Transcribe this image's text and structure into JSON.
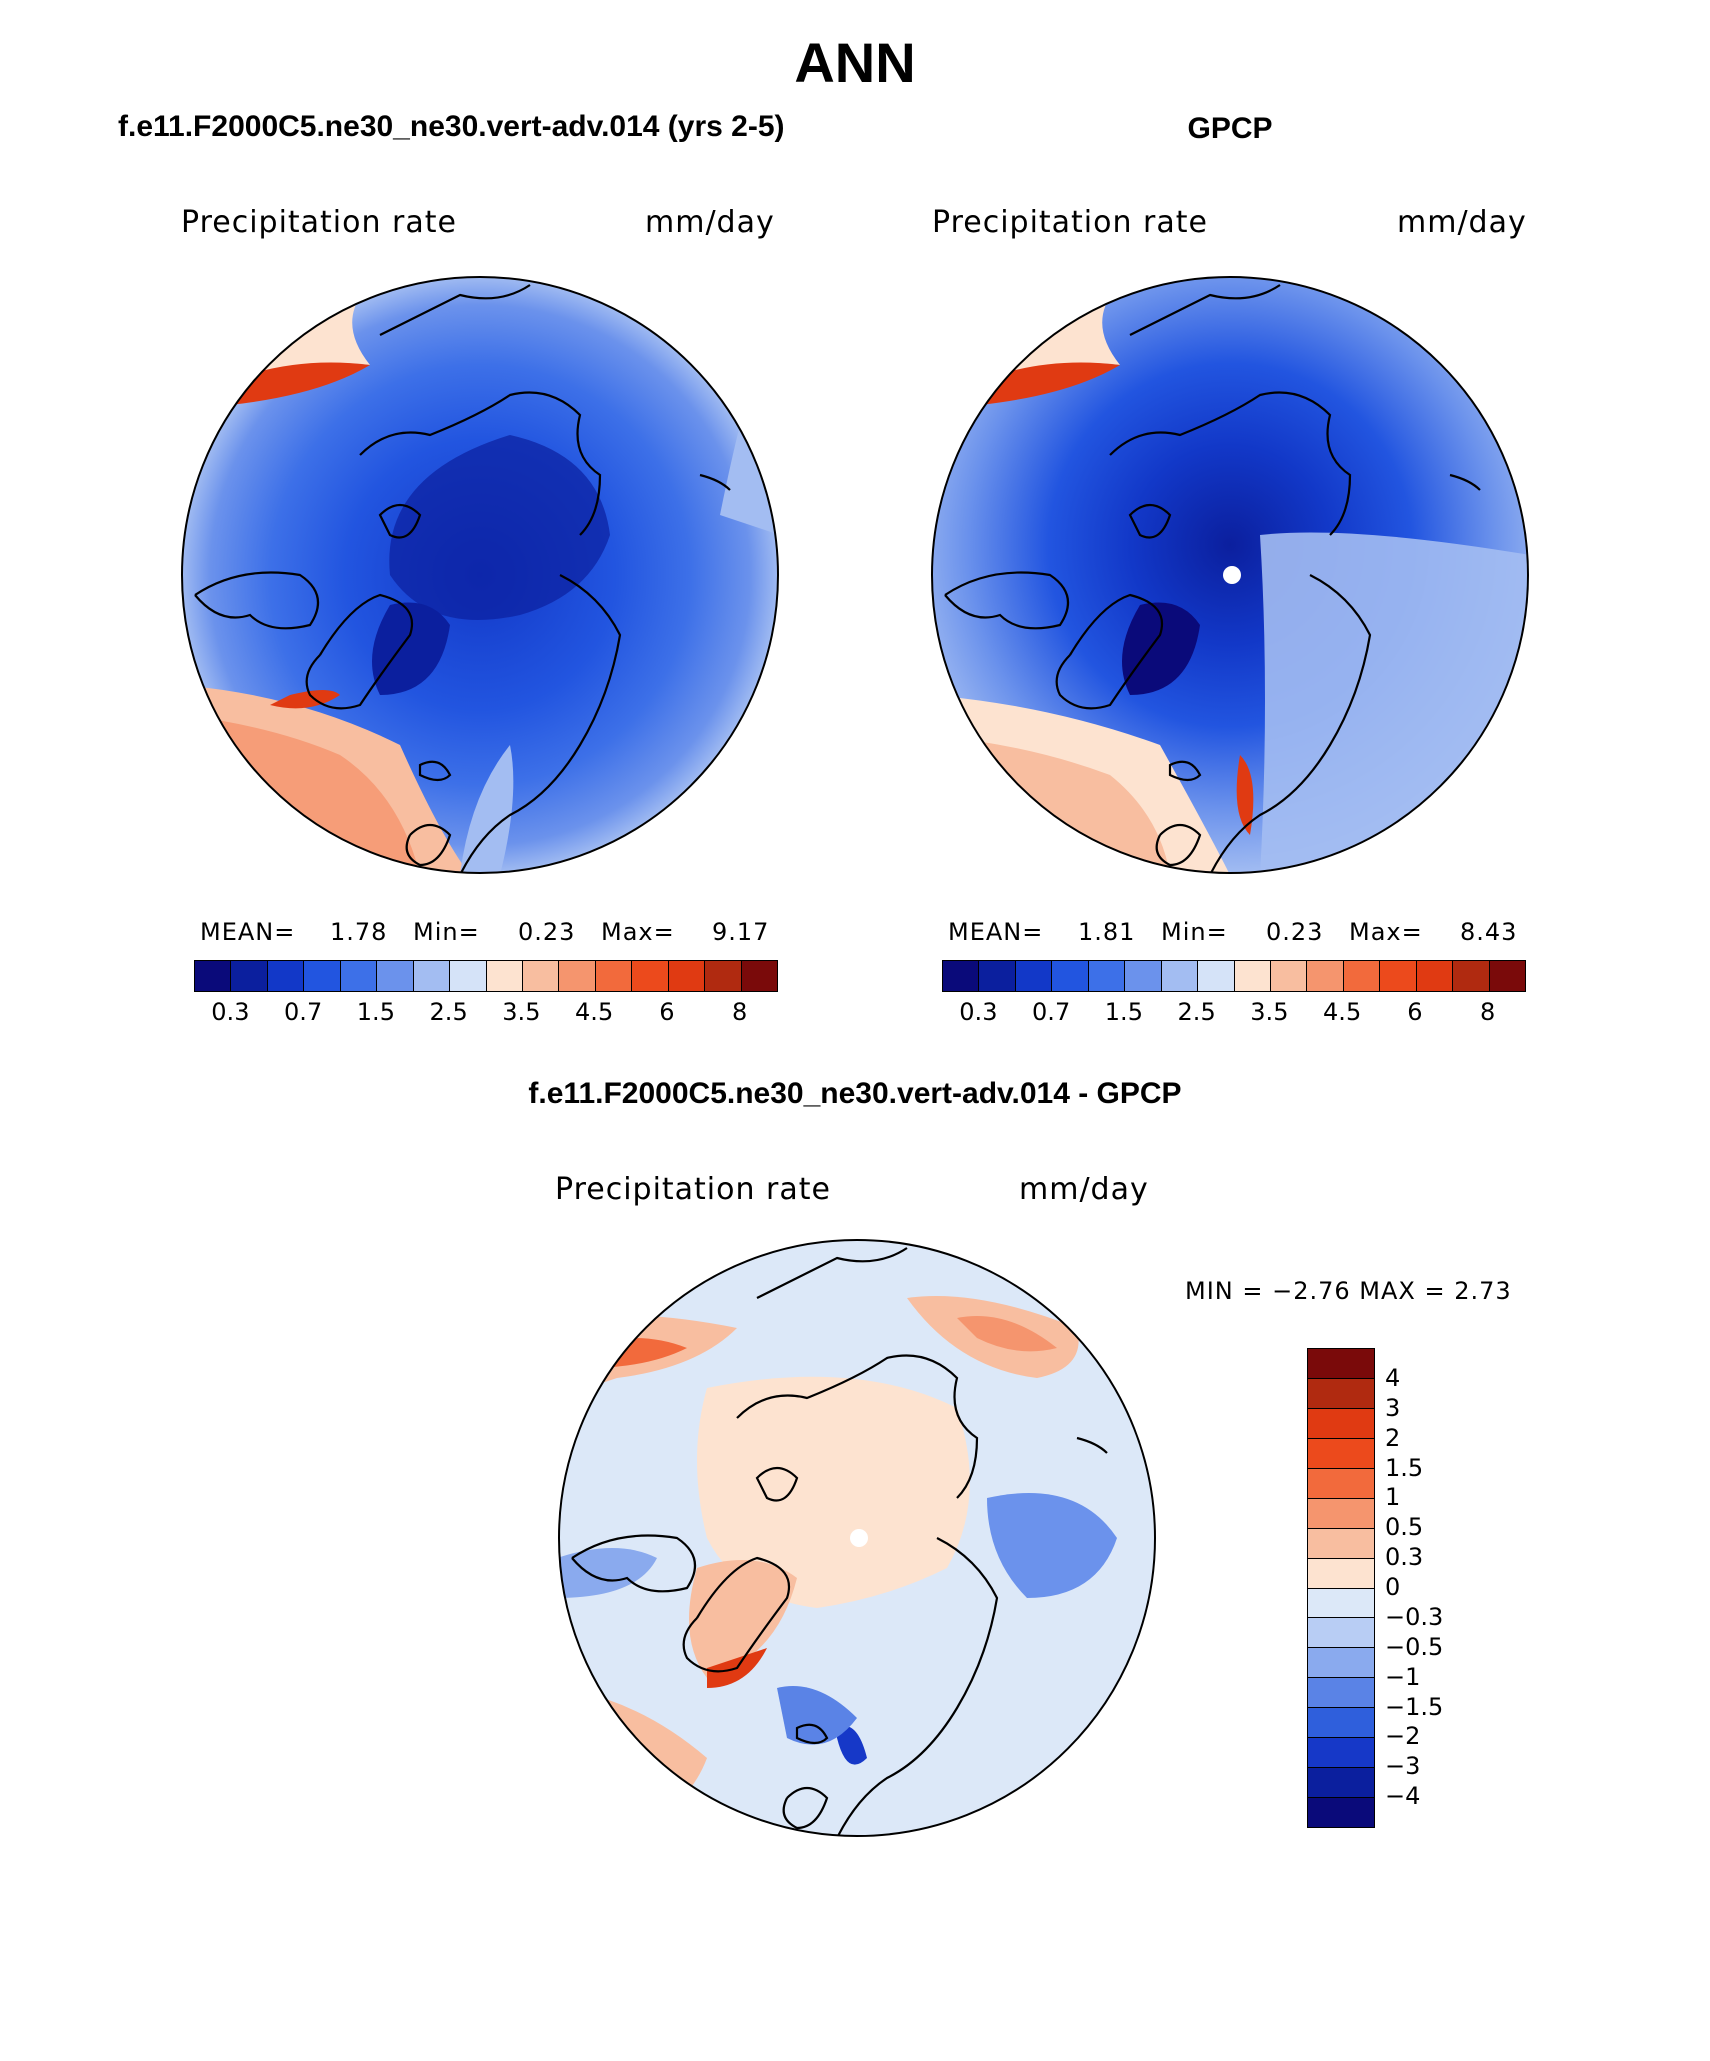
{
  "main_title": "ANN",
  "panels": {
    "top_left": {
      "title": "f.e11.F2000C5.ne30_ne30.vert-adv.014 (yrs 2-5)",
      "variable": "Precipitation rate",
      "units": "mm/day",
      "stats": {
        "mean_label": "MEAN=",
        "mean": "1.78",
        "min_label": "Min=",
        "min": "0.23",
        "max_label": "Max=",
        "max": "9.17"
      }
    },
    "top_right": {
      "title": "GPCP",
      "variable": "Precipitation rate",
      "units": "mm/day",
      "stats": {
        "mean_label": "MEAN=",
        "mean": "1.81",
        "min_label": "Min=",
        "min": "0.23",
        "max_label": "Max=",
        "max": "8.43"
      }
    },
    "bottom": {
      "title": "f.e11.F2000C5.ne30_ne30.vert-adv.014 - GPCP",
      "variable": "Precipitation rate",
      "units": "mm/day",
      "stats_text": "MIN =   −2.76  MAX =    2.73"
    }
  },
  "colorbar_abs": {
    "colors": [
      "#0a0a7a",
      "#0b1f9e",
      "#1238c8",
      "#2255e0",
      "#3d70e8",
      "#6b92ec",
      "#a3bdf2",
      "#d5e3f8",
      "#fde3d0",
      "#f8bea0",
      "#f5956e",
      "#f26a3c",
      "#ec4a1c",
      "#e03a12",
      "#b02a10",
      "#7a0a0a"
    ],
    "tick_labels": [
      "0.3",
      "0.7",
      "1.5",
      "2.5",
      "3.5",
      "4.5",
      "6",
      "8"
    ]
  },
  "colorbar_diff": {
    "colors": [
      "#7a0a0a",
      "#b02a10",
      "#e03a12",
      "#ec4a1c",
      "#f26a3c",
      "#f5956e",
      "#f8bea0",
      "#fde3d0",
      "#dce8f8",
      "#b8cdf4",
      "#8aaaee",
      "#5a83e6",
      "#2f5fdc",
      "#1638c8",
      "#0b1f9e",
      "#0a0a7a"
    ],
    "tick_labels": [
      "4",
      "3",
      "2",
      "1.5",
      "1",
      "0.5",
      "0.3",
      "0",
      "−0.3",
      "−0.5",
      "−1",
      "−1.5",
      "−2",
      "−3",
      "−4"
    ]
  }
}
